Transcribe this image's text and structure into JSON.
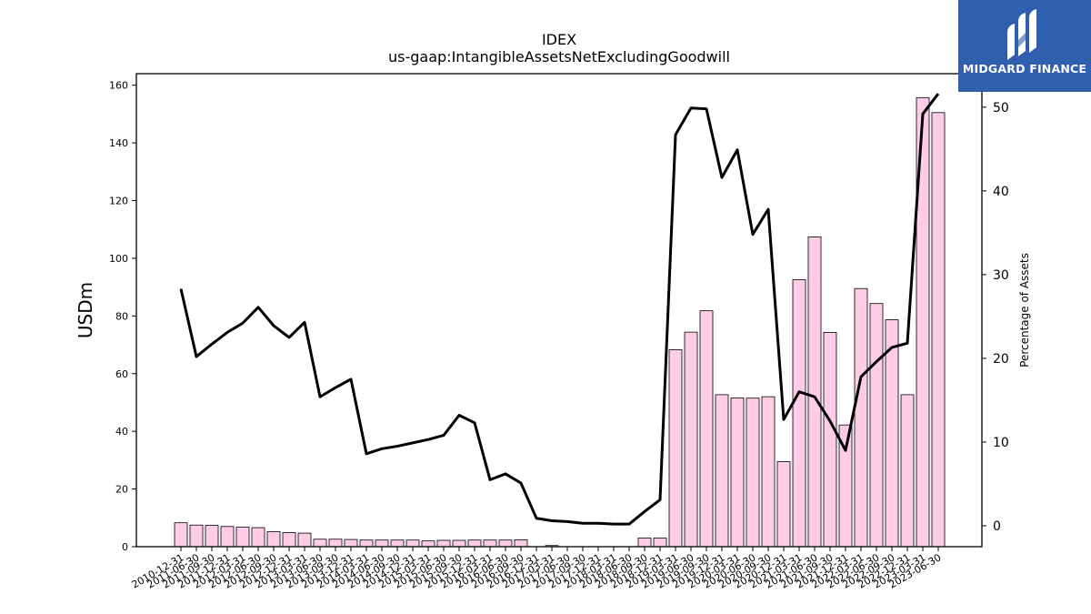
{
  "chart_data": {
    "type": "bar+line",
    "title": "IDEX",
    "subtitle": "us-gaap:IntangibleAssetsNetExcludingGoodwill",
    "ylabel": "USDm",
    "y2label": "Percentage of Assets",
    "ylim": [
      0,
      164
    ],
    "y2lim": [
      -2.5,
      54
    ],
    "yticks": [
      0,
      20,
      40,
      60,
      80,
      100,
      120,
      140,
      160
    ],
    "y2ticks": [
      0,
      10,
      20,
      30,
      40,
      50
    ],
    "categories": [
      "2010-12-31",
      "2011-06-30",
      "2011-09-30",
      "2011-12-31",
      "2012-03-31",
      "2012-06-30",
      "2012-09-30",
      "2012-12-31",
      "2013-03-31",
      "2013-06-30",
      "2013-09-30",
      "2013-12-31",
      "2014-03-31",
      "2014-06-30",
      "2014-09-30",
      "2014-12-31",
      "2015-03-31",
      "2015-06-30",
      "2015-09-30",
      "2015-12-31",
      "2016-03-31",
      "2016-06-30",
      "2016-09-30",
      "2016-12-31",
      "2017-03-31",
      "2017-06-30",
      "2017-09-30",
      "2017-12-31",
      "2018-03-31",
      "2018-06-30",
      "2018-09-30",
      "2018-12-31",
      "2019-03-31",
      "2019-06-30",
      "2019-09-30",
      "2019-12-31",
      "2020-03-31",
      "2020-06-30",
      "2020-09-30",
      "2020-12-31",
      "2021-03-31",
      "2021-06-30",
      "2021-09-30",
      "2021-12-31",
      "2022-03-31",
      "2022-06-30",
      "2022-09-30",
      "2022-12-31",
      "2023-03-31",
      "2023-06-30"
    ],
    "series": [
      {
        "name": "",
        "kind": "bar",
        "axis": "left",
        "color": "#ffcce6",
        "values": [
          8.3,
          7.5,
          7.4,
          7.0,
          6.8,
          6.6,
          5.2,
          4.9,
          4.7,
          2.6,
          2.6,
          2.5,
          2.3,
          2.3,
          2.3,
          2.3,
          2.0,
          2.2,
          2.2,
          2.3,
          2.3,
          2.3,
          2.4,
          0,
          0.4,
          0,
          0,
          0,
          0,
          0,
          3.0,
          3.0,
          68.3,
          74.4,
          81.8,
          52.7,
          51.6,
          51.5,
          52.0,
          29.5,
          92.6,
          107.4,
          74.3,
          42.2,
          89.5,
          84.3,
          78.7,
          52.7,
          155.7,
          150.5
        ]
      },
      {
        "name": "",
        "kind": "line",
        "axis": "right",
        "color": "#000000",
        "values": [
          28.3,
          20.2,
          21.7,
          23.1,
          24.2,
          26.1,
          23.9,
          22.5,
          24.3,
          15.4,
          16.5,
          17.5,
          8.6,
          9.2,
          9.5,
          9.9,
          10.3,
          10.8,
          13.2,
          12.3,
          5.5,
          6.2,
          5.1,
          0.9,
          0.6,
          0.5,
          0.3,
          0.3,
          0.2,
          0.2,
          1.7,
          3.1,
          46.7,
          49.9,
          49.8,
          41.6,
          44.9,
          34.8,
          37.8,
          12.7,
          16.0,
          15.4,
          12.5,
          9.0,
          17.8,
          19.6,
          21.3,
          21.8,
          49.2,
          51.6
        ]
      }
    ],
    "grid": false
  },
  "logo": {
    "text": "MIDGARD FINANCE",
    "color": "#2f5fae"
  }
}
